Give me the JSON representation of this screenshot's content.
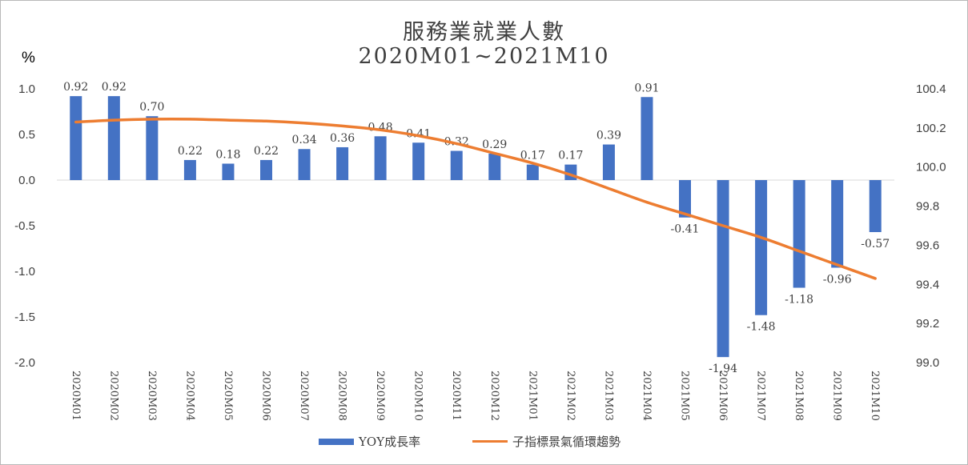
{
  "chart_data": {
    "type": "bar",
    "title": "服務業就業人數",
    "subtitle": "2020M01~2021M10",
    "ylabel_left": "%",
    "categories": [
      "2020M01",
      "2020M02",
      "2020M03",
      "2020M04",
      "2020M05",
      "2020M06",
      "2020M07",
      "2020M08",
      "2020M09",
      "2020M10",
      "2020M11",
      "2020M12",
      "2021M01",
      "2021M02",
      "2021M03",
      "2021M04",
      "2021M05",
      "2021M06",
      "2021M07",
      "2021M08",
      "2021M09",
      "2021M10"
    ],
    "series": [
      {
        "name": "YOY成長率",
        "type": "bar",
        "axis": "left",
        "color": "#4472c4",
        "values": [
          0.92,
          0.92,
          0.7,
          0.22,
          0.18,
          0.22,
          0.34,
          0.36,
          0.48,
          0.41,
          0.32,
          0.29,
          0.17,
          0.17,
          0.39,
          0.91,
          -0.41,
          -1.94,
          -1.48,
          -1.18,
          -0.96,
          -0.57
        ],
        "labels": [
          "0.92",
          "0.92",
          "0.70",
          "0.22",
          "0.18",
          "0.22",
          "0.34",
          "0.36",
          "0.48",
          "0.41",
          "0.32",
          "0.29",
          "0.17",
          "0.17",
          "0.39",
          "0.91",
          "-0.41",
          "-1.94",
          "-1.48",
          "-1.18",
          "-0.96",
          "-0.57"
        ]
      },
      {
        "name": "子指標景氣循環趨勢",
        "type": "line",
        "axis": "right",
        "color": "#ed7d31",
        "values": [
          100.23,
          100.24,
          100.245,
          100.245,
          100.24,
          100.235,
          100.225,
          100.21,
          100.19,
          100.16,
          100.12,
          100.07,
          100.02,
          99.96,
          99.89,
          99.82,
          99.76,
          99.7,
          99.64,
          99.57,
          99.5,
          99.43
        ]
      }
    ],
    "y_left": {
      "min": -2.0,
      "max": 1.0,
      "ticks": [
        "1.0",
        "0.5",
        "0.0",
        "-0.5",
        "-1.0",
        "-1.5",
        "-2.0"
      ],
      "tick_values": [
        1.0,
        0.5,
        0.0,
        -0.5,
        -1.0,
        -1.5,
        -2.0
      ]
    },
    "y_right": {
      "min": 99.0,
      "max": 100.4,
      "ticks": [
        "100.4",
        "100.2",
        "100.0",
        "99.8",
        "99.6",
        "99.4",
        "99.2",
        "99.0"
      ],
      "tick_values": [
        100.4,
        100.2,
        100.0,
        99.8,
        99.6,
        99.4,
        99.2,
        99.0
      ]
    },
    "grid": false,
    "legend_position": "bottom"
  }
}
